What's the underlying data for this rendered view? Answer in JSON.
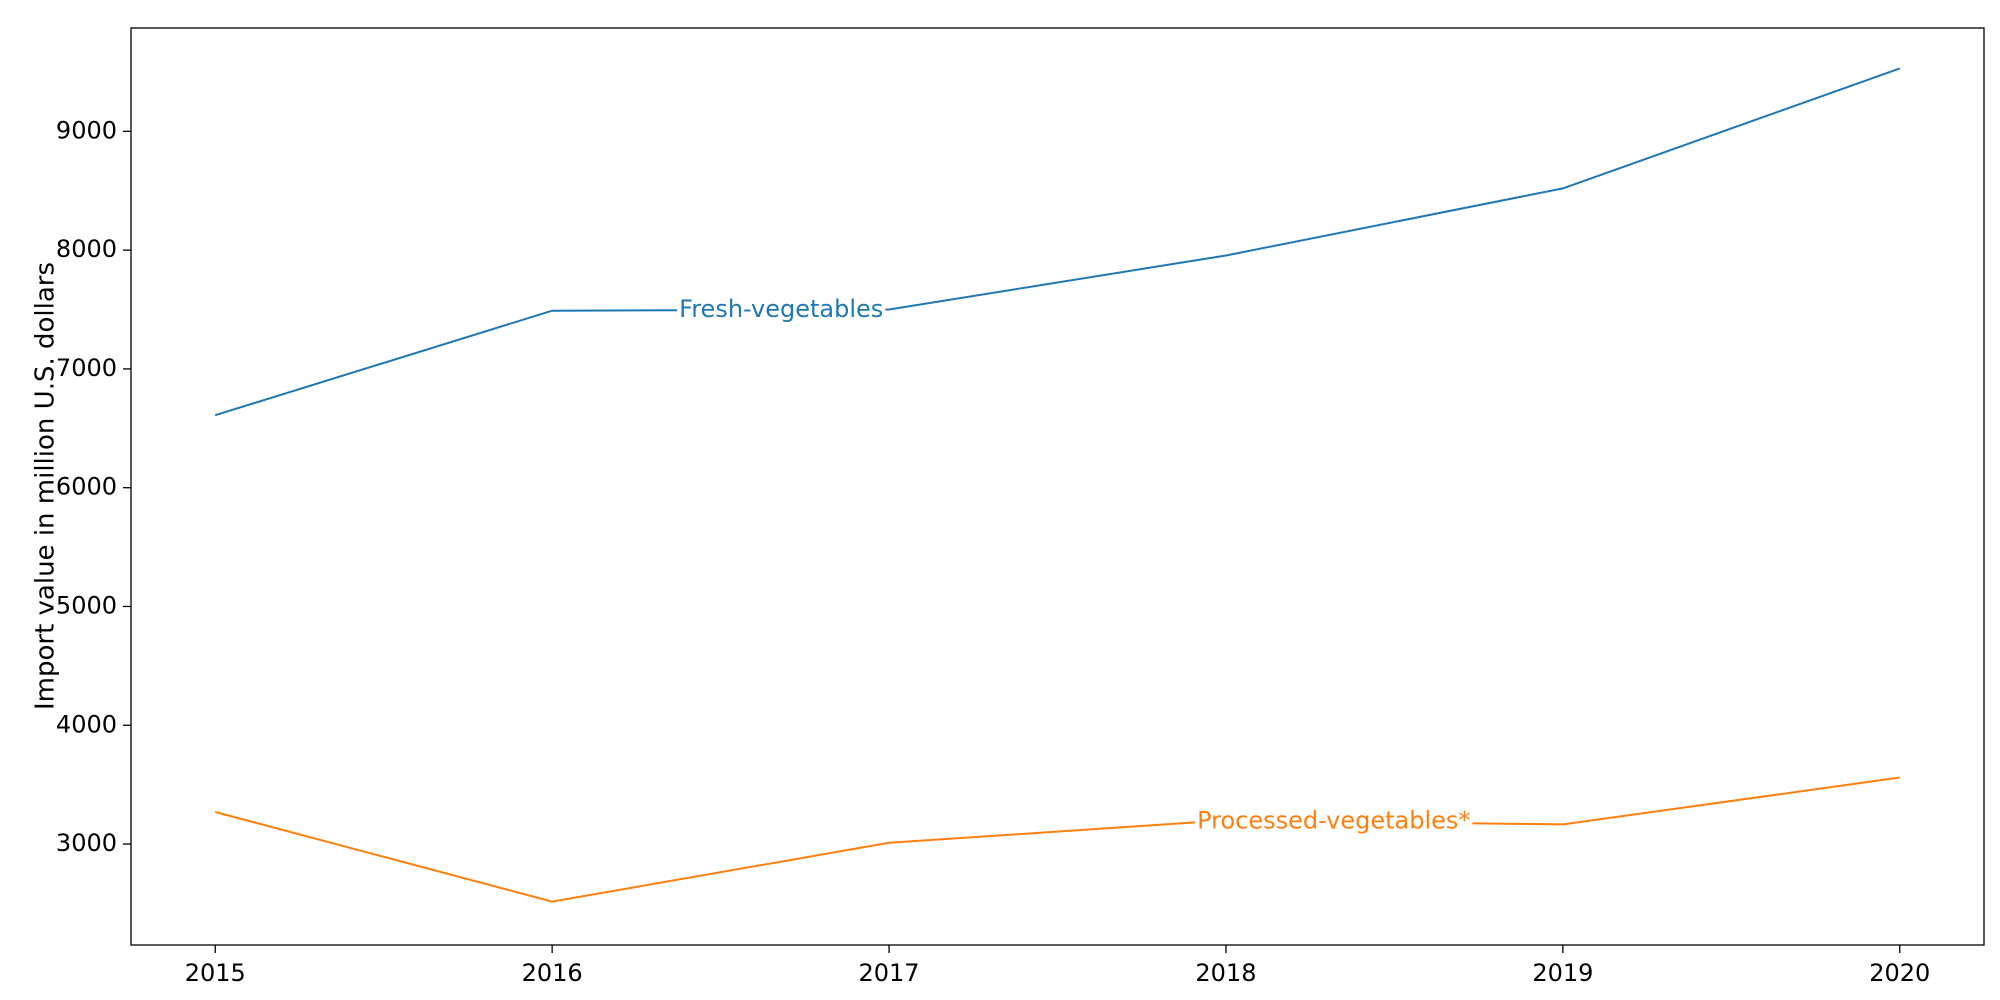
{
  "chart_data": {
    "type": "line",
    "title": "",
    "xlabel": "",
    "ylabel": "Import value in million U.S. dollars",
    "x": [
      2015,
      2016,
      2017,
      2018,
      2019,
      2020
    ],
    "xlim": [
      2014.75,
      2020.25
    ],
    "ylim": [
      2150,
      9870
    ],
    "yticks": [
      3000,
      4000,
      5000,
      6000,
      7000,
      8000,
      9000
    ],
    "grid": false,
    "legend": "none",
    "series": [
      {
        "name": "Fresh-vegetables",
        "color": "#1f77b4",
        "values": [
          6610,
          7490,
          7500,
          7955,
          8520,
          9530
        ],
        "label_at": 2016.68
      },
      {
        "name": "Processed-vegetables*",
        "color": "#ff7f0e",
        "values": [
          3270,
          2515,
          3010,
          3200,
          3165,
          3560
        ],
        "label_at": 2018.32
      }
    ]
  }
}
